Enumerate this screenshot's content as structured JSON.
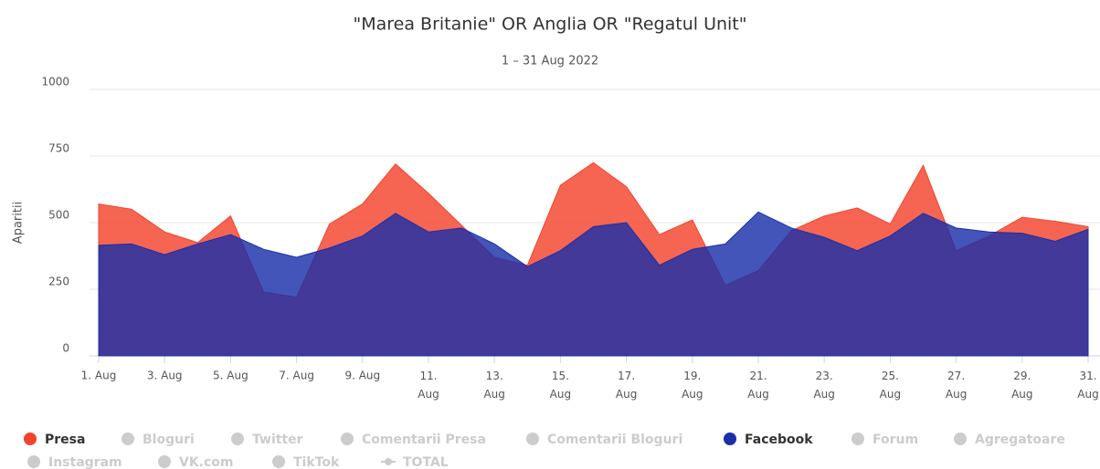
{
  "chart_data": {
    "type": "area",
    "title": "\"Marea Britanie\" OR Anglia OR \"Regatul Unit\"",
    "subtitle": "1 – 31 Aug 2022",
    "y_label": "Aparitii",
    "categories": [
      "1. Aug",
      null,
      "3. Aug",
      null,
      "5. Aug",
      null,
      "7. Aug",
      null,
      "9. Aug",
      null,
      "11. Aug",
      null,
      "13. Aug",
      null,
      "15. Aug",
      null,
      "17. Aug",
      null,
      "19. Aug",
      null,
      "21. Aug",
      null,
      "23. Aug",
      null,
      "25. Aug",
      null,
      "27. Aug",
      null,
      "29. Aug",
      null,
      "31. Aug"
    ],
    "ylim": [
      0,
      1000
    ],
    "yticks": [
      0,
      250,
      500,
      750,
      1000
    ],
    "grid": true,
    "series": [
      {
        "name": "Presa",
        "color": "#f4432c",
        "visible": true,
        "values": [
          570,
          550,
          465,
          425,
          525,
          240,
          220,
          495,
          570,
          720,
          610,
          490,
          370,
          340,
          640,
          725,
          635,
          455,
          510,
          265,
          320,
          470,
          525,
          555,
          495,
          715,
          395,
          450,
          520,
          505,
          485
        ]
      },
      {
        "name": "Bloguri",
        "visible": false
      },
      {
        "name": "Twitter",
        "visible": false
      },
      {
        "name": "Comentarii Presa",
        "visible": false
      },
      {
        "name": "Comentarii Bloguri",
        "visible": false
      },
      {
        "name": "Facebook",
        "color": "#1a2fa8",
        "visible": true,
        "values": [
          415,
          420,
          380,
          420,
          455,
          400,
          370,
          405,
          450,
          535,
          465,
          480,
          420,
          335,
          395,
          485,
          500,
          340,
          400,
          420,
          540,
          480,
          445,
          395,
          450,
          535,
          480,
          465,
          460,
          430,
          475
        ]
      },
      {
        "name": "Forum",
        "visible": false
      },
      {
        "name": "Agregatoare",
        "visible": false
      },
      {
        "name": "Instagram",
        "visible": false
      },
      {
        "name": "VK.com",
        "visible": false
      },
      {
        "name": "TikTok",
        "visible": false
      },
      {
        "name": "TOTAL",
        "visible": false,
        "symbol": "line"
      }
    ]
  }
}
